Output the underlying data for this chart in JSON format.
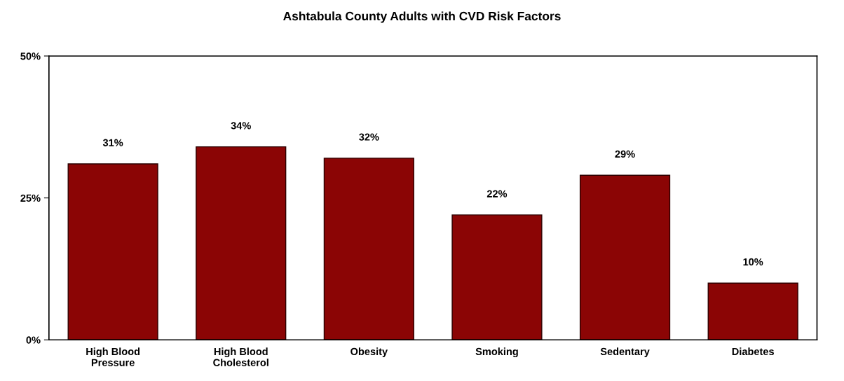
{
  "chart_data": {
    "type": "bar",
    "title": "Ashtabula County Adults with CVD Risk Factors",
    "categories": [
      "High Blood\nPressure",
      "High Blood\nCholesterol",
      "Obesity",
      "Smoking",
      "Sedentary",
      "Diabetes"
    ],
    "values": [
      31,
      34,
      32,
      22,
      29,
      10
    ],
    "value_labels": [
      "31%",
      "34%",
      "32%",
      "22%",
      "29%",
      "10%"
    ],
    "color": "#8b0505",
    "ylim": [
      0,
      50
    ],
    "yticks": [
      {
        "value": 0,
        "label": "0%"
      },
      {
        "value": 25,
        "label": "25%"
      },
      {
        "value": 50,
        "label": "50%"
      }
    ],
    "grid": false
  }
}
